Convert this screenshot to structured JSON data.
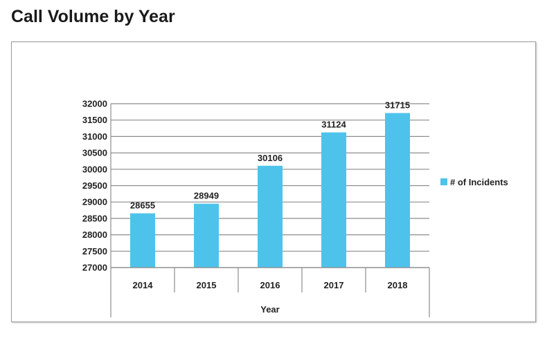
{
  "title": "Call Volume by Year",
  "chart_data": {
    "type": "bar",
    "categories": [
      "2014",
      "2015",
      "2016",
      "2017",
      "2018"
    ],
    "series": [
      {
        "name": "# of Incidents",
        "values": [
          28655,
          28949,
          30106,
          31124,
          31715
        ],
        "color": "#4dc3ec"
      }
    ],
    "data_labels": [
      "28655",
      "28949",
      "30106",
      "31124",
      "31715"
    ],
    "ylim": [
      27000,
      32000
    ],
    "yticks": [
      27000,
      27500,
      28000,
      28500,
      29000,
      29500,
      30000,
      30500,
      31000,
      31500,
      32000
    ],
    "ytick_labels": [
      "27000",
      "27500",
      "28000",
      "28500",
      "29000",
      "29500",
      "30000",
      "30500",
      "31000",
      "31500",
      "32000"
    ],
    "xlabel": "Year",
    "ylabel": "",
    "grid": true,
    "legend": "right"
  }
}
